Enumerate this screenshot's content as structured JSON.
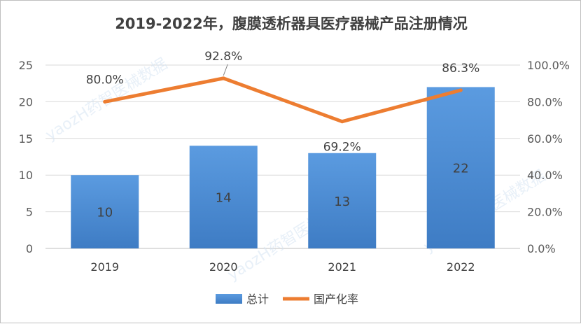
{
  "chart_data": {
    "type": "bar+line",
    "title": "2019-2022年，腹膜透析器具医疗器械产品注册情况",
    "categories": [
      "2019",
      "2020",
      "2021",
      "2022"
    ],
    "series": [
      {
        "name": "总计",
        "type": "bar",
        "axis": "left",
        "values": [
          10,
          14,
          13,
          22
        ],
        "labels": [
          "10",
          "14",
          "13",
          "22"
        ],
        "color": "#4f8fd6"
      },
      {
        "name": "国产化率",
        "type": "line",
        "axis": "right",
        "values": [
          80.0,
          92.8,
          69.2,
          86.3
        ],
        "labels": [
          "80.0%",
          "92.8%",
          "69.2%",
          "86.3%"
        ],
        "color": "#ed7d31"
      }
    ],
    "ylim_left": [
      0,
      25
    ],
    "yticks_left": [
      "0",
      "5",
      "10",
      "15",
      "20",
      "25"
    ],
    "ylim_right": [
      0,
      100
    ],
    "yticks_right": [
      "0.0%",
      "20.0%",
      "40.0%",
      "60.0%",
      "80.0%",
      "100.0%"
    ],
    "grid": true,
    "legend_position": "bottom-center"
  },
  "watermark": {
    "text": "yaozH药智医械数据"
  }
}
